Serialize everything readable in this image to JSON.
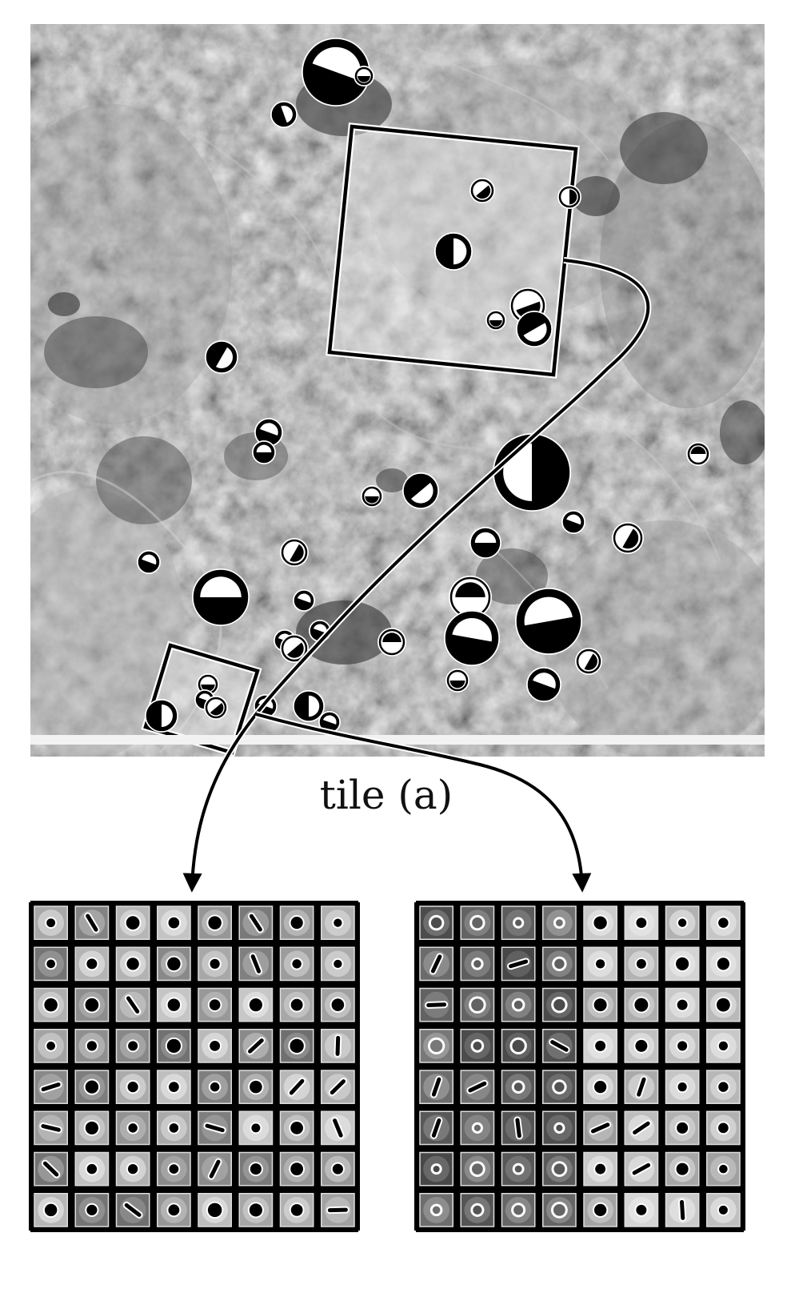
{
  "figure": {
    "caption": "tile (a)"
  }
}
